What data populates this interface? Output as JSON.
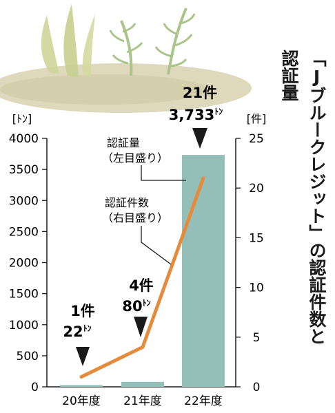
{
  "title_line1": "「Jブルークレジット」の認証件数と",
  "title_line2": "認証量",
  "chart_data": {
    "type": "bar+line",
    "categories": [
      "20年度",
      "21年度",
      "22年度"
    ],
    "series": [
      {
        "name": "認証量",
        "type": "bar",
        "axis": "left",
        "values": [
          22,
          80,
          3733
        ]
      },
      {
        "name": "認証件数",
        "type": "line",
        "axis": "right",
        "values": [
          1,
          4,
          21
        ]
      }
    ],
    "left_axis": {
      "unit": "[ﾄﾝ]",
      "ylim": [
        0,
        4000
      ],
      "ticks": [
        0,
        500,
        1000,
        1500,
        2000,
        2500,
        3000,
        3500,
        4000
      ]
    },
    "right_axis": {
      "unit": "[件]",
      "ylim": [
        0,
        25
      ],
      "ticks": [
        0,
        5,
        10,
        15,
        20,
        25
      ]
    },
    "annotations": [
      {
        "count": "1件",
        "amount": "22",
        "unit": "ﾄﾝ"
      },
      {
        "count": "4件",
        "amount": "80",
        "unit": "ﾄﾝ"
      },
      {
        "count": "21件",
        "amount": "3,733",
        "unit": "ﾄﾝ"
      }
    ],
    "callouts": [
      {
        "line1": "認証量",
        "line2": "（左目盛り）"
      },
      {
        "line1": "認証件数",
        "line2": "（右目盛り）"
      }
    ],
    "grid": false,
    "colors": {
      "bar": "#93bfb8",
      "line": "#e58c3c",
      "axis": "#1a1a1a"
    }
  }
}
